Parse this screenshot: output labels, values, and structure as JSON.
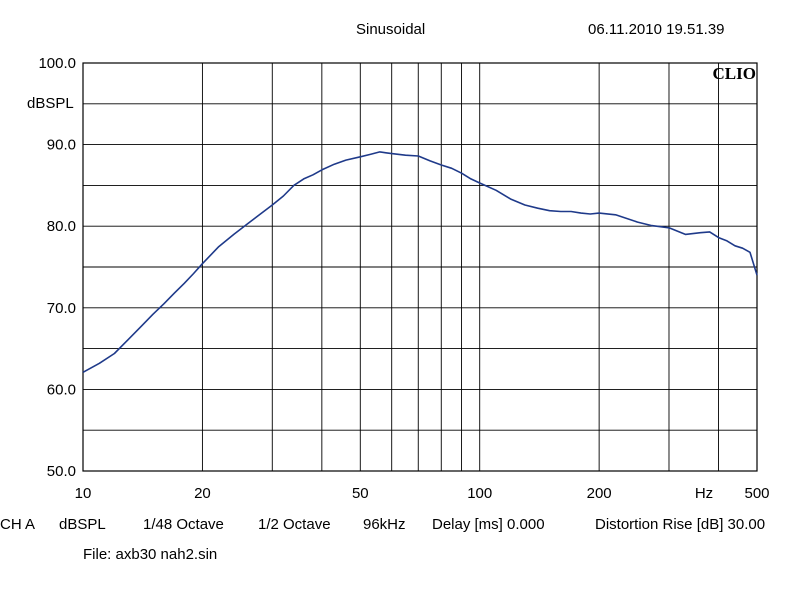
{
  "header": {
    "mode": "Sinusoidal",
    "datetime": "06.11.2010 19.51.39",
    "brand": "CLIO"
  },
  "footer": {
    "channel": "CH A",
    "unit": "dBSPL",
    "resolution": "1/48 Octave",
    "smoothing": "1/2 Octave",
    "sample_rate": "96kHz",
    "delay": "Delay [ms] 0.000",
    "distortion": "Distortion Rise [dB] 30.00",
    "file": "File: axb30 nah2.sin"
  },
  "chart_data": {
    "type": "line",
    "title": "Sinusoidal",
    "ylabel": "dBSPL",
    "xlabel": "Hz",
    "xscale": "log",
    "xlim": [
      10,
      500
    ],
    "ylim": [
      50,
      100
    ],
    "x_tick_labels": [
      {
        "value": 10,
        "label": "10"
      },
      {
        "value": 20,
        "label": "20"
      },
      {
        "value": 50,
        "label": "50"
      },
      {
        "value": 100,
        "label": "100"
      },
      {
        "value": 200,
        "label": "200"
      },
      {
        "value": 500,
        "label": "500"
      }
    ],
    "x_unit_label": "Hz",
    "y_tick_labels": [
      {
        "value": 100,
        "label": "100.0"
      },
      {
        "value": 90,
        "label": "90.0"
      },
      {
        "value": 80,
        "label": "80.0"
      },
      {
        "value": 70,
        "label": "70.0"
      },
      {
        "value": 60,
        "label": "60.0"
      },
      {
        "value": 50,
        "label": "50.0"
      }
    ],
    "grid": true,
    "line_color": "#1f3a8a",
    "series": [
      {
        "x": [
          10,
          11,
          12,
          13,
          14,
          15,
          16,
          17,
          18,
          19,
          20,
          22,
          24,
          26,
          28,
          30,
          32,
          34,
          36,
          38,
          40,
          43,
          46,
          50,
          53,
          56,
          58,
          60,
          65,
          70,
          75,
          80,
          85,
          90,
          95,
          100,
          110,
          120,
          130,
          140,
          150,
          160,
          170,
          180,
          190,
          200,
          220,
          250,
          270,
          300,
          330,
          360,
          380,
          400,
          420,
          440,
          460,
          480,
          500
        ],
        "y": [
          62.1,
          63.2,
          64.4,
          66.1,
          67.7,
          69.2,
          70.5,
          71.8,
          73.0,
          74.2,
          75.4,
          77.5,
          79.0,
          80.3,
          81.5,
          82.6,
          83.7,
          85.0,
          85.8,
          86.3,
          86.9,
          87.6,
          88.1,
          88.5,
          88.8,
          89.1,
          89.0,
          88.9,
          88.7,
          88.6,
          88.0,
          87.5,
          87.1,
          86.5,
          85.8,
          85.3,
          84.4,
          83.3,
          82.6,
          82.2,
          81.9,
          81.8,
          81.8,
          81.6,
          81.5,
          81.6,
          81.4,
          80.5,
          80.1,
          79.8,
          79.0,
          79.2,
          79.3,
          78.6,
          78.2,
          77.6,
          77.3,
          76.8,
          74.0
        ]
      }
    ]
  }
}
